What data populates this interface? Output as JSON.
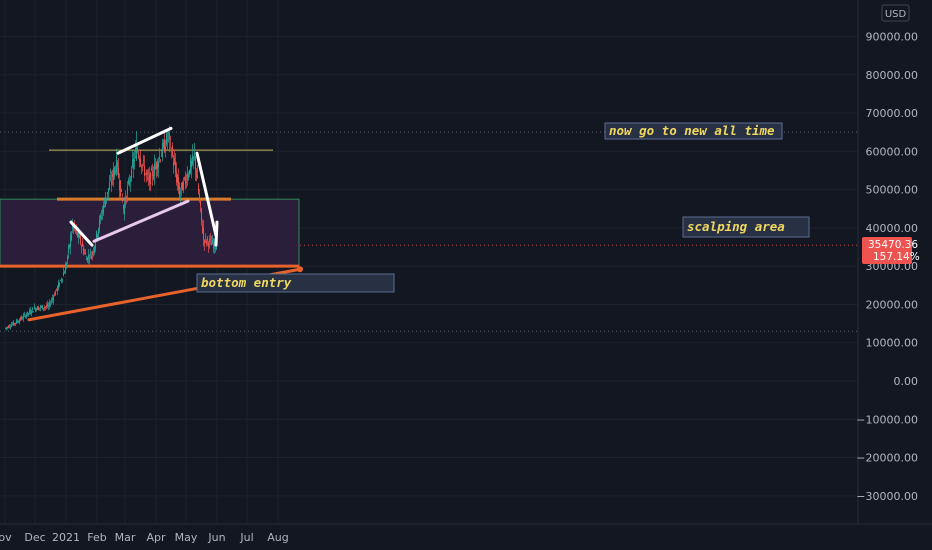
{
  "currency_label": "USD",
  "price_badge": {
    "price": "35470.36",
    "change": "157.14%"
  },
  "colors": {
    "background": "#131722",
    "grid": "#1e222d",
    "axis_text": "#b2b5be",
    "candle_up": "#26a69a",
    "candle_down": "#ef5350",
    "badge": "#ef5350",
    "zone_fill": "#2d1f3d",
    "zone_border": "#2e8b57",
    "support_line": "#e8622a",
    "resistance_line": "#c8b85a",
    "pattern_line": "#ffffff",
    "note_text": "#f0d860"
  },
  "annotations": {
    "ath_note": "now go to new all time",
    "scalping_note": "scalping area",
    "bottom_note": "bottom entry"
  },
  "chart_data": {
    "type": "candlestick",
    "title": "",
    "xlabel": "",
    "ylabel": "",
    "x_ticks": [
      "ov",
      "Dec",
      "2021",
      "Feb",
      "Mar",
      "Apr",
      "May",
      "Jun",
      "Jul",
      "Aug"
    ],
    "y_ticks": [
      90000,
      80000,
      70000,
      60000,
      50000,
      40000,
      30000,
      20000,
      10000,
      0,
      -10000,
      -20000,
      -30000
    ],
    "y_tick_labels": [
      "90000.00",
      "80000.00",
      "70000.00",
      "60000.00",
      "50000.00",
      "40000.00",
      "30000.00",
      "20000.00",
      "10000.00",
      "0.00",
      "−10000.00",
      "−20000.00",
      "−30000.00"
    ],
    "ylim": [
      -40000,
      95000
    ],
    "grid": true,
    "last_price": 35470.36,
    "price_path": [
      {
        "date": "2020-11-01",
        "price": 13700
      },
      {
        "date": "2020-11-15",
        "price": 15800
      },
      {
        "date": "2020-12-01",
        "price": 19000
      },
      {
        "date": "2020-12-15",
        "price": 19500
      },
      {
        "date": "2020-12-25",
        "price": 25000
      },
      {
        "date": "2021-01-01",
        "price": 29500
      },
      {
        "date": "2021-01-08",
        "price": 40500
      },
      {
        "date": "2021-01-15",
        "price": 37000
      },
      {
        "date": "2021-01-22",
        "price": 32000
      },
      {
        "date": "2021-01-28",
        "price": 33500
      },
      {
        "date": "2021-02-08",
        "price": 46000
      },
      {
        "date": "2021-02-21",
        "price": 57000
      },
      {
        "date": "2021-02-28",
        "price": 45000
      },
      {
        "date": "2021-03-13",
        "price": 61000
      },
      {
        "date": "2021-03-25",
        "price": 52000
      },
      {
        "date": "2021-04-05",
        "price": 58500
      },
      {
        "date": "2021-04-14",
        "price": 64000
      },
      {
        "date": "2021-04-25",
        "price": 49000
      },
      {
        "date": "2021-05-10",
        "price": 58500
      },
      {
        "date": "2021-05-19",
        "price": 37000
      },
      {
        "date": "2021-05-31",
        "price": 35470
      }
    ],
    "overlays": {
      "zone": {
        "top": 47500,
        "bottom": 30000,
        "start": "2020-11-01",
        "end": "2021-08-22"
      },
      "horizontal_lines": [
        {
          "price": 60300,
          "start": "2020-12-15",
          "end": "2021-07-27",
          "role": "resistance"
        },
        {
          "price": 47500,
          "start": "2020-12-23",
          "end": "2021-06-15",
          "role": "mid-level"
        },
        {
          "price": 30000,
          "start": "2020-11-01",
          "end": "2021-08-22",
          "role": "support"
        }
      ],
      "trendlines": [
        {
          "from": {
            "date": "2020-11-25",
            "price": 16000
          },
          "to": {
            "date": "2021-08-23",
            "price": 29200
          },
          "role": "long-term support"
        },
        {
          "from": {
            "date": "2021-01-06",
            "price": 41500
          },
          "to": {
            "date": "2021-01-27",
            "price": 35500
          },
          "role": "pattern"
        },
        {
          "from": {
            "date": "2021-01-29",
            "price": 36500
          },
          "to": {
            "date": "2021-05-03",
            "price": 47000
          },
          "role": "pattern"
        },
        {
          "from": {
            "date": "2021-02-22",
            "price": 59500
          },
          "to": {
            "date": "2021-04-16",
            "price": 66000
          },
          "role": "pattern"
        },
        {
          "from": {
            "date": "2021-05-12",
            "price": 59500
          },
          "to": {
            "date": "2021-05-31",
            "price": 38000
          },
          "role": "pattern"
        },
        {
          "from": {
            "date": "2021-05-31",
            "price": 35500
          },
          "to": {
            "date": "2021-06-01",
            "price": 41500
          },
          "role": "pattern"
        }
      ]
    }
  }
}
